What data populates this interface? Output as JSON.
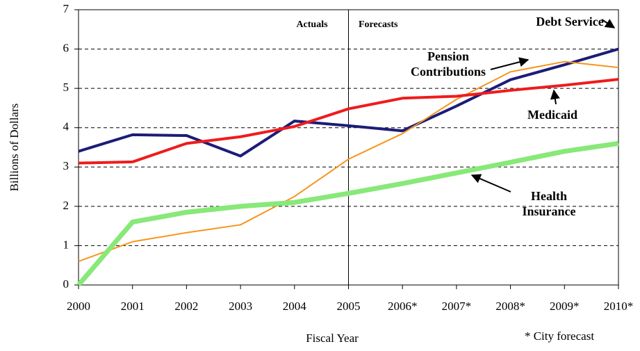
{
  "chart_data": {
    "type": "line",
    "y_label": "Billions of Dollars",
    "x_label": "Fiscal Year",
    "annotations": [
      "Actuals",
      "Forecasts",
      "* City forecast"
    ],
    "categories": [
      "2000",
      "2001",
      "2002",
      "2003",
      "2004",
      "2005",
      "2006*",
      "2007*",
      "2008*",
      "2009*",
      "2010*"
    ],
    "series": [
      {
        "name": "Debt Service",
        "color": "#1c1c78",
        "values": [
          3.4,
          3.82,
          3.8,
          3.28,
          4.17,
          4.05,
          3.92,
          4.55,
          5.22,
          5.6,
          6.0
        ]
      },
      {
        "name": "Pension Contributions",
        "color": "#f7941d",
        "values": [
          0.6,
          1.1,
          1.33,
          1.53,
          2.25,
          3.2,
          3.85,
          4.72,
          5.42,
          5.68,
          5.53
        ]
      },
      {
        "name": "Medicaid",
        "color": "#ee1c1c",
        "values": [
          3.1,
          3.13,
          3.6,
          3.77,
          4.03,
          4.48,
          4.75,
          4.8,
          4.95,
          5.08,
          5.23
        ]
      },
      {
        "name": "Health Insurance",
        "color": "#88e878",
        "values": [
          0,
          1.6,
          1.85,
          2.0,
          2.1,
          2.33,
          2.58,
          2.85,
          3.12,
          3.4,
          3.6
        ]
      }
    ],
    "ylim": [
      0,
      7
    ],
    "yticks": [
      0,
      1,
      2,
      3,
      4,
      5,
      6,
      7
    ],
    "grid": true
  }
}
